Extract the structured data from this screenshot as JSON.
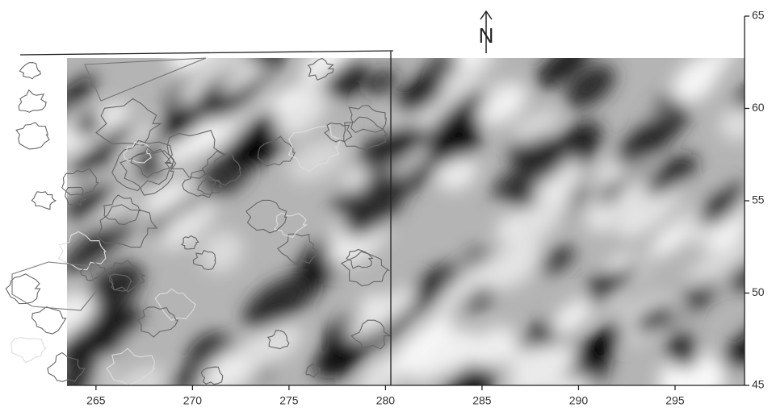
{
  "chart_data": {
    "type": "map",
    "north_label": "N",
    "xlim": [
      263.5,
      298.6
    ],
    "xticks": [
      265,
      270,
      275,
      280,
      285,
      290,
      295
    ],
    "ylim": [
      45,
      65
    ],
    "yticks": [
      45,
      50,
      55,
      60,
      65
    ]
  }
}
